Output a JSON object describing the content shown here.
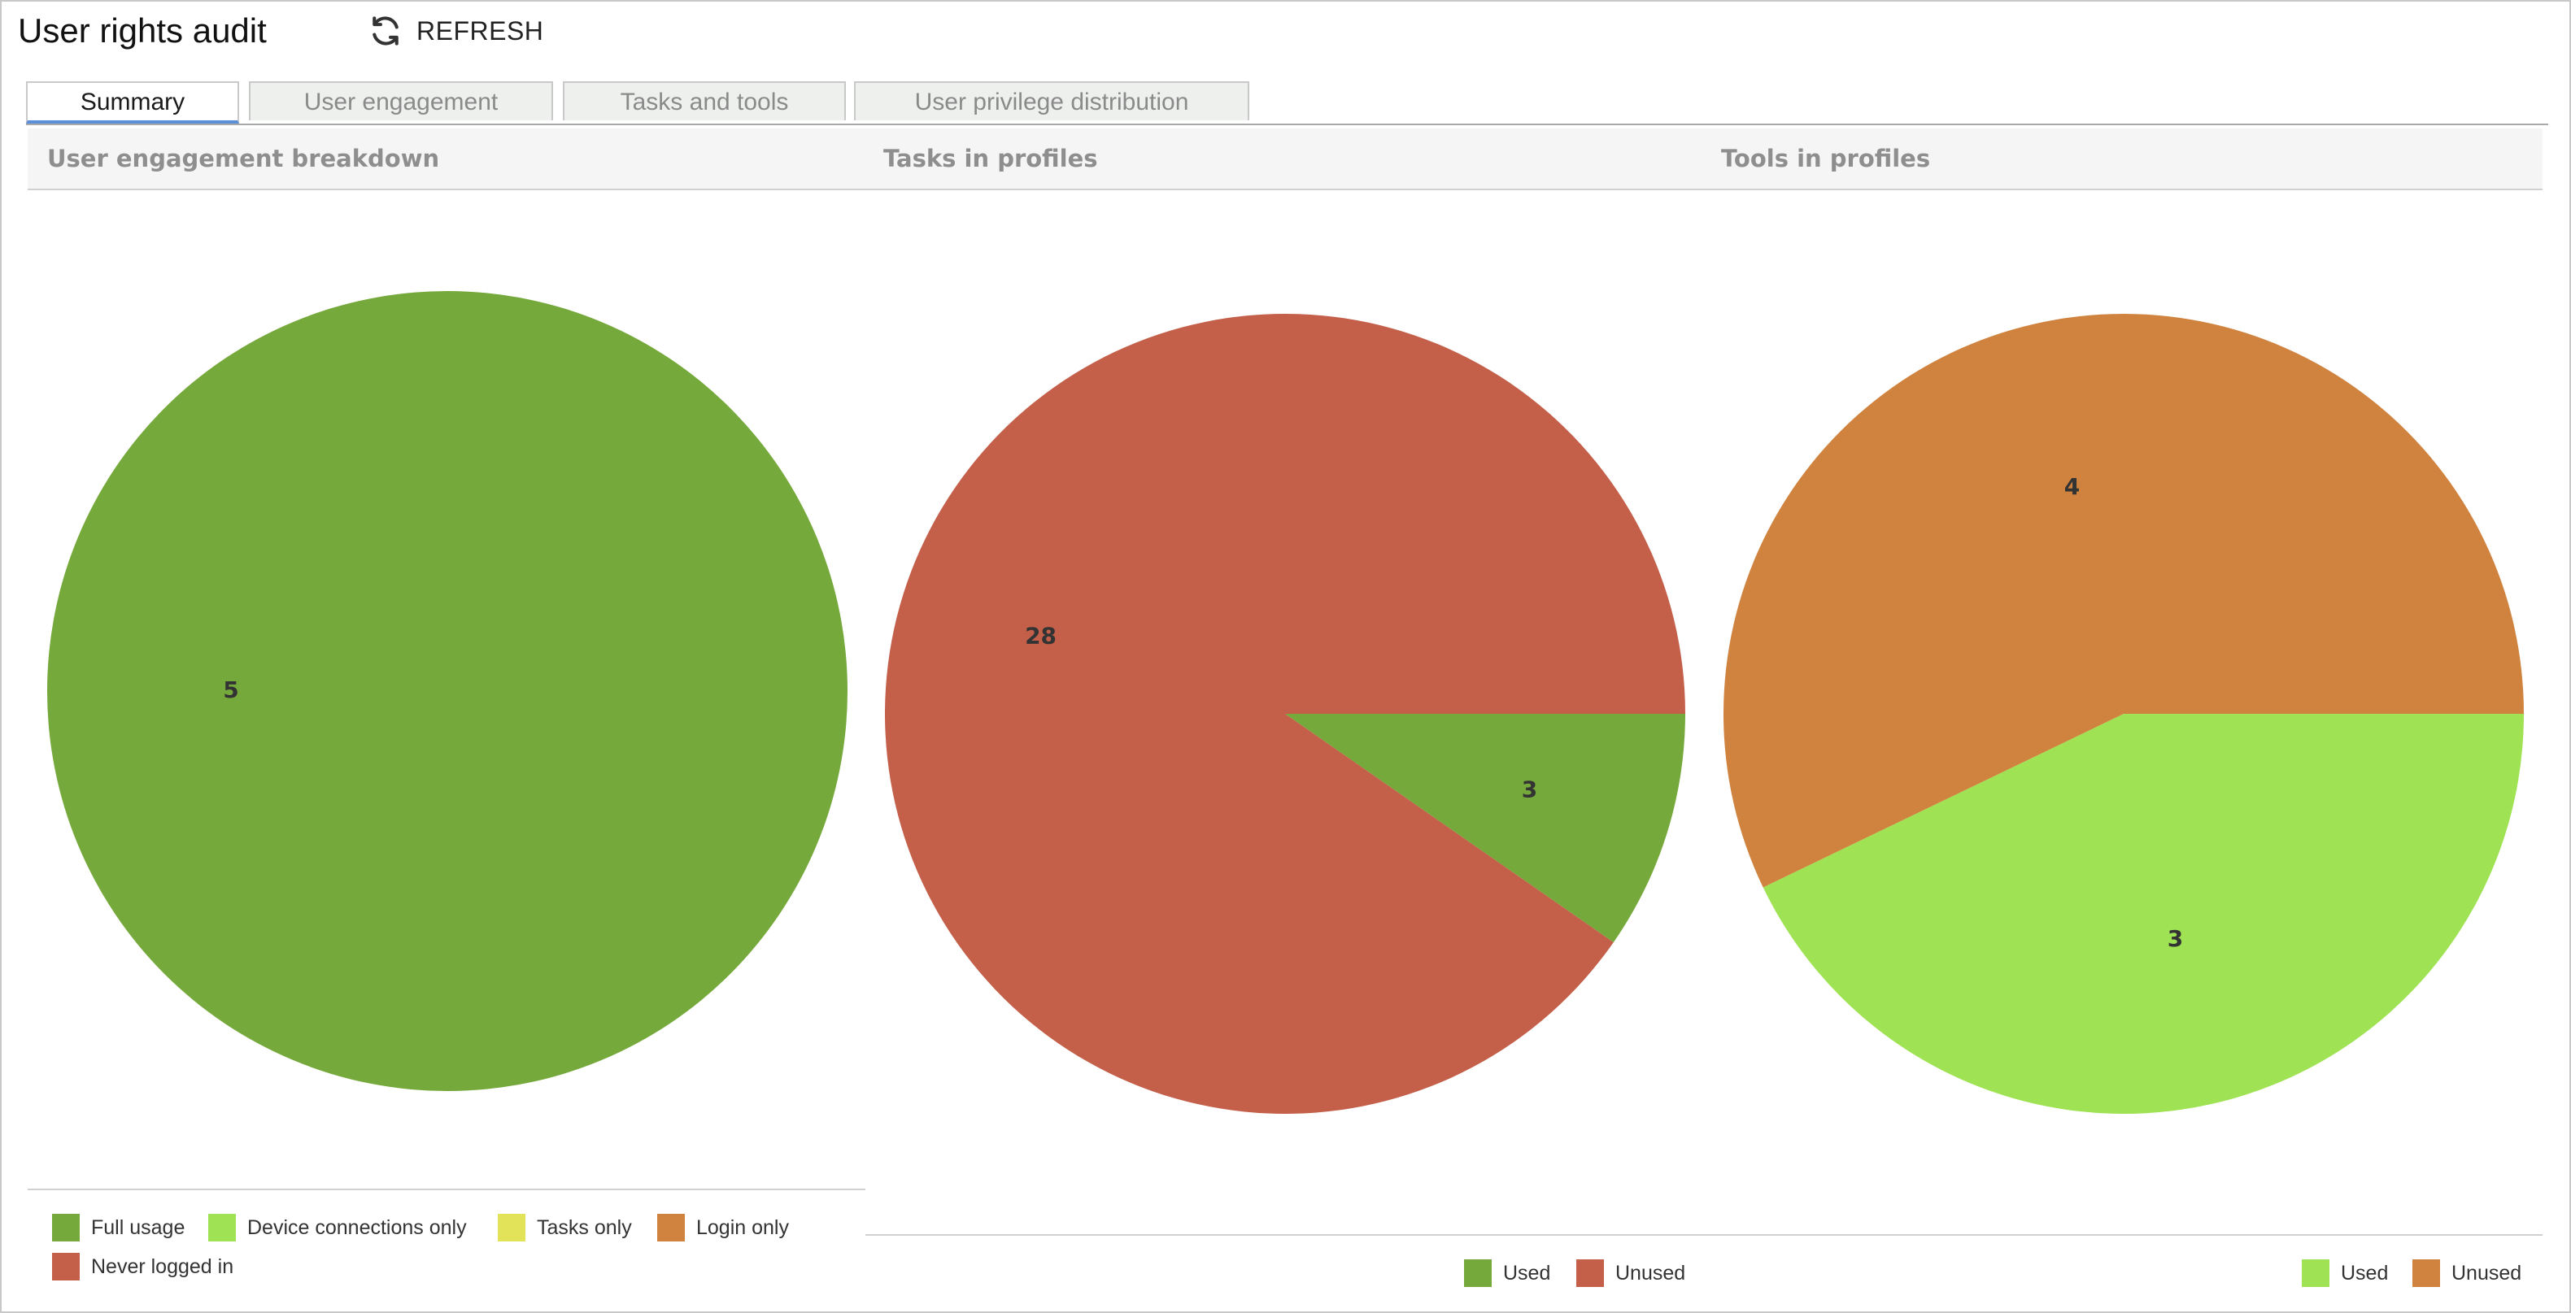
{
  "header": {
    "title": "User rights audit",
    "refresh_label": "REFRESH",
    "refresh_icon": "refresh-icon"
  },
  "tabs": [
    {
      "label": "Summary",
      "active": true
    },
    {
      "label": "User engagement",
      "active": false
    },
    {
      "label": "Tasks and tools",
      "active": false
    },
    {
      "label": "User privilege distribution",
      "active": false
    }
  ],
  "panels": {
    "engagement": {
      "title": "User engagement breakdown"
    },
    "tasks": {
      "title": "Tasks in profiles"
    },
    "tools": {
      "title": "Tools in profiles"
    }
  },
  "colors": {
    "full_usage": "#76a93b",
    "device_connections_only": "#9fe253",
    "tasks_only": "#e3e35a",
    "login_only": "#d0833f",
    "never_logged_in": "#c4604a"
  },
  "chart_data": [
    {
      "type": "pie",
      "title": "User engagement breakdown",
      "categories": [
        "Full usage",
        "Device connections only",
        "Tasks only",
        "Login only",
        "Never logged in"
      ],
      "values": [
        5,
        0,
        0,
        0,
        0
      ],
      "colors": [
        "#76a93b",
        "#9fe253",
        "#e3e35a",
        "#d0833f",
        "#c4604a"
      ],
      "legend": "bottom"
    },
    {
      "type": "pie",
      "title": "Tasks in profiles",
      "categories": [
        "Used",
        "Unused"
      ],
      "values": [
        3,
        28
      ],
      "colors": [
        "#76a93b",
        "#c4604a"
      ],
      "legend": "bottom"
    },
    {
      "type": "pie",
      "title": "Tools in profiles",
      "categories": [
        "Used",
        "Unused"
      ],
      "values": [
        3,
        4
      ],
      "colors": [
        "#9fe253",
        "#d0833f"
      ],
      "legend": "bottom"
    }
  ]
}
